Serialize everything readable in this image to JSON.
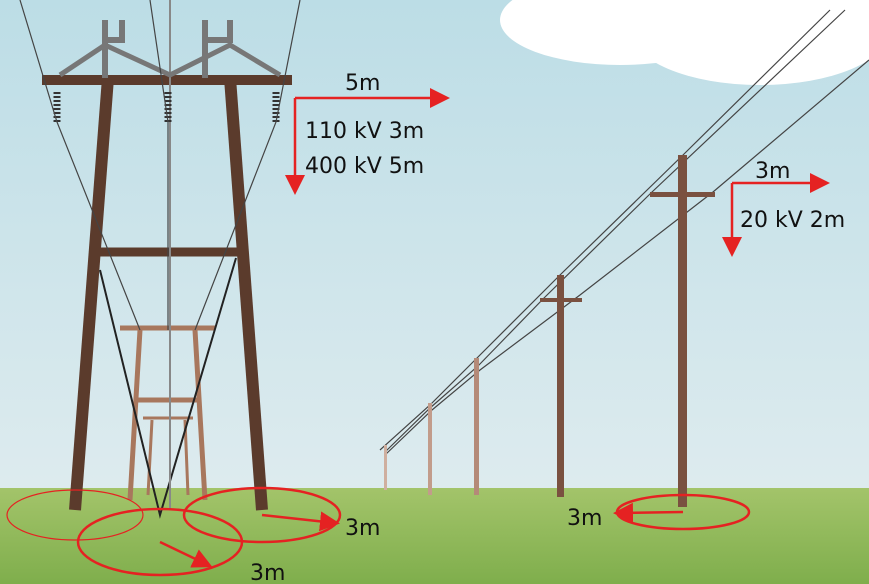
{
  "labels": {
    "tower_horizontal": "5m",
    "tower_vertical_110": "110 kV 3m",
    "tower_vertical_400": "400 kV 5m",
    "pole_horizontal": "3m",
    "pole_vertical": "20 kV 2m",
    "tower_ground_right": "3m",
    "tower_ground_center": "3m",
    "pole_ground": "3m"
  }
}
